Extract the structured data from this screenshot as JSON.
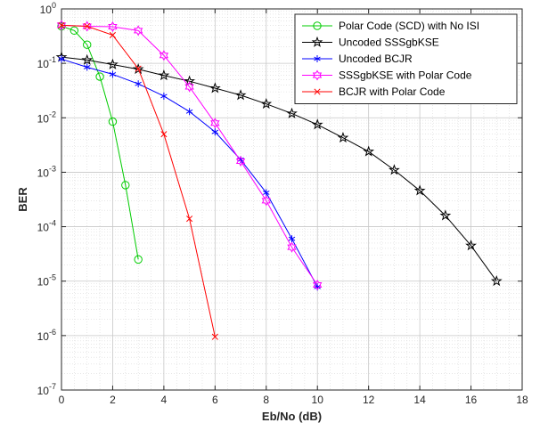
{
  "chart_data": {
    "type": "line",
    "title": "",
    "xlabel": "Eb/No (dB)",
    "ylabel": "BER",
    "xlim": [
      0,
      18
    ],
    "ylim_exponents": [
      -7,
      0
    ],
    "yscale": "log",
    "grid": true,
    "minor_grid": true,
    "legend_position": "top-right",
    "xticks": [
      0,
      2,
      4,
      6,
      8,
      10,
      12,
      14,
      16,
      18
    ],
    "yticks": [
      {
        "base": "10",
        "exp": "0"
      },
      {
        "base": "10",
        "exp": "-1"
      },
      {
        "base": "10",
        "exp": "-2"
      },
      {
        "base": "10",
        "exp": "-3"
      },
      {
        "base": "10",
        "exp": "-4"
      },
      {
        "base": "10",
        "exp": "-5"
      },
      {
        "base": "10",
        "exp": "-6"
      },
      {
        "base": "10",
        "exp": "-7"
      }
    ],
    "series": [
      {
        "name": "Polar Code (SCD) with No ISI",
        "color": "#00cc00",
        "marker": "circle",
        "x": [
          0,
          0.5,
          1,
          1.5,
          2,
          2.5,
          3
        ],
        "y": [
          0.48,
          0.4,
          0.22,
          0.057,
          0.0085,
          0.00058,
          2.5e-05
        ]
      },
      {
        "name": "Uncoded SSSgbKSE",
        "color": "#000000",
        "marker": "star",
        "x": [
          0,
          1,
          2,
          3,
          4,
          5,
          6,
          7,
          8,
          9,
          10,
          11,
          12,
          13,
          14,
          15,
          16,
          17
        ],
        "y": [
          0.13,
          0.115,
          0.095,
          0.078,
          0.06,
          0.047,
          0.035,
          0.026,
          0.018,
          0.012,
          0.0075,
          0.0043,
          0.0024,
          0.0011,
          0.00046,
          0.00016,
          4.5e-05,
          1e-05
        ]
      },
      {
        "name": "Uncoded BCJR",
        "color": "#0000ff",
        "marker": "asterisk",
        "x": [
          0,
          1,
          2,
          3,
          4,
          5,
          6,
          7,
          8,
          9,
          10
        ],
        "y": [
          0.12,
          0.085,
          0.063,
          0.042,
          0.025,
          0.013,
          0.0055,
          0.0017,
          0.00042,
          6e-05,
          7.8e-06
        ]
      },
      {
        "name": "SSSgbKSE with Polar Code",
        "color": "#ff00ff",
        "marker": "hexagram",
        "x": [
          0,
          1,
          2,
          3,
          4,
          5,
          6,
          7,
          8,
          9,
          10
        ],
        "y": [
          0.5,
          0.48,
          0.47,
          0.4,
          0.14,
          0.037,
          0.008,
          0.0016,
          0.0003,
          4.2e-05,
          8.5e-06
        ]
      },
      {
        "name": "BCJR with Polar Code",
        "color": "#ff0000",
        "marker": "x",
        "x": [
          0,
          1,
          2,
          3,
          4,
          5,
          6
        ],
        "y": [
          0.5,
          0.48,
          0.33,
          0.08,
          0.005,
          0.00014,
          9.5e-07
        ]
      }
    ]
  }
}
